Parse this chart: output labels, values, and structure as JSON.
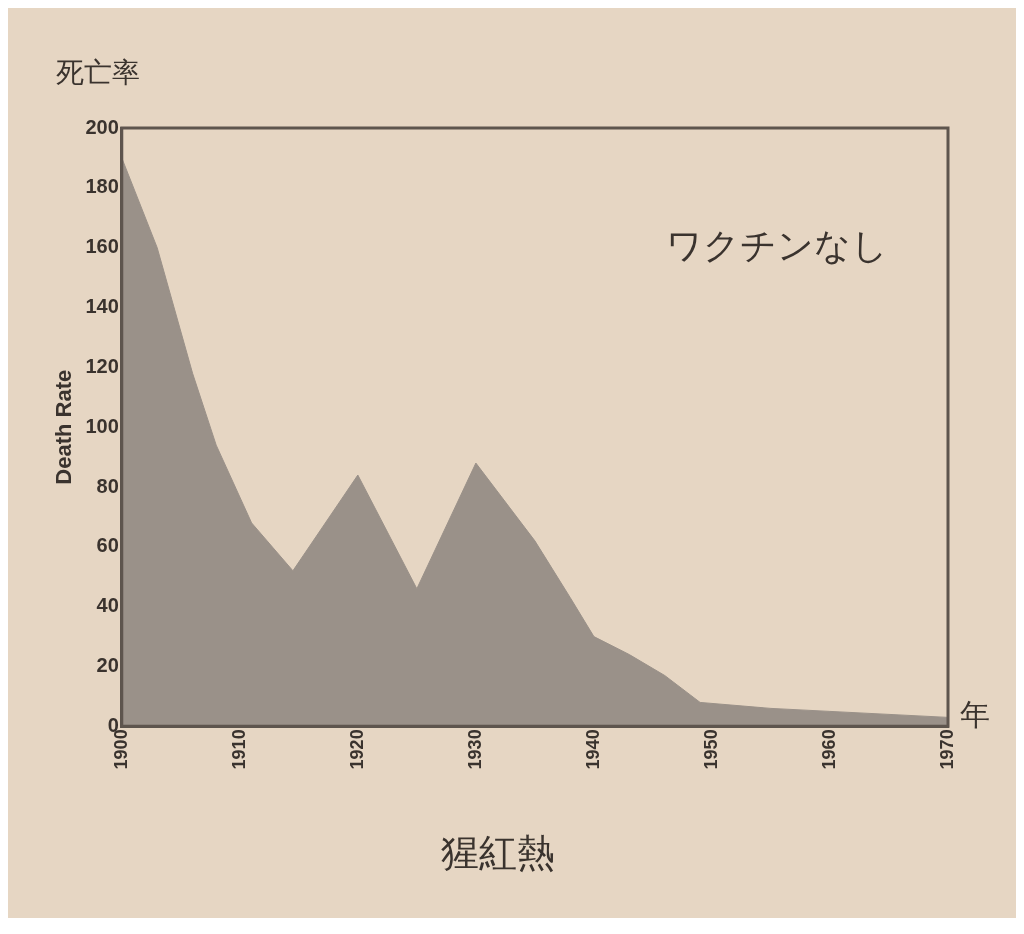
{
  "chart_data": {
    "type": "area",
    "title": "猩紅熱",
    "xlabel": "年",
    "ylabel": "Death Rate",
    "annotations": [
      "死亡率",
      "ワクチンなし"
    ],
    "x": [
      1900,
      1903,
      1906,
      1908,
      1911,
      1914.5,
      1920,
      1925,
      1930,
      1935,
      1938,
      1940,
      1943,
      1946,
      1949,
      1955,
      1960,
      1970
    ],
    "series": [
      {
        "color": "#9a9189",
        "values": [
          190,
          160,
          118,
          94,
          68,
          52,
          84,
          46,
          88,
          62,
          43,
          30,
          24,
          17,
          8,
          6,
          5,
          3
        ]
      }
    ],
    "xlim": [
      1900,
      1970
    ],
    "xticks": [
      1900,
      1910,
      1920,
      1930,
      1940,
      1950,
      1960,
      1970
    ],
    "ylim": [
      0,
      200
    ],
    "yticks": [
      0,
      20,
      40,
      60,
      80,
      100,
      120,
      140,
      160,
      180,
      200
    ],
    "grid": false,
    "legend": false
  }
}
